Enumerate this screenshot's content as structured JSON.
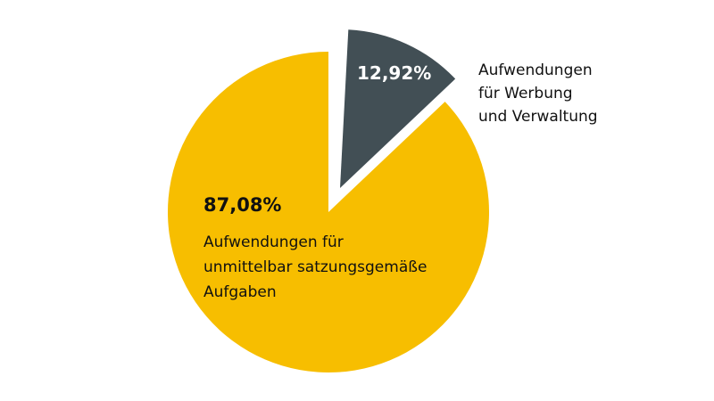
{
  "chart_data": {
    "type": "pie",
    "title": "",
    "slices": [
      {
        "label": "Aufwendungen für Werbung und Verwaltung",
        "label_lines": [
          "Aufwendungen",
          "für Werbung",
          "und Verwaltung"
        ],
        "value": 12.92,
        "value_label": "12,92%",
        "color": "#424F55",
        "exploded": true
      },
      {
        "label": "Aufwendungen für unmittelbar satzungsgemäße Aufgaben",
        "label_lines": [
          "Aufwendungen für",
          "unmittelbar satzungsgemäße",
          "Aufgaben"
        ],
        "value": 87.08,
        "value_label": "87,08%",
        "color": "#F7BE00",
        "exploded": false
      }
    ]
  }
}
